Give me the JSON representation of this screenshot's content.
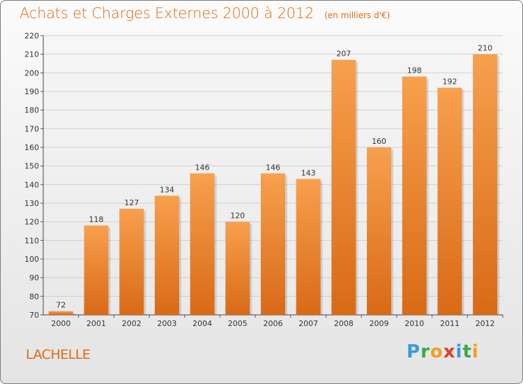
{
  "header": {
    "title": "Achats et Charges Externes 2000 à 2012",
    "subtitle": "(en milliers d'€)"
  },
  "commune": "LACHELLE",
  "brand": {
    "letters": [
      {
        "ch": "P",
        "color": "#3a9ad9"
      },
      {
        "ch": "r",
        "color": "#3aa84a"
      },
      {
        "ch": "o",
        "color": "#f0a020"
      },
      {
        "ch": "x",
        "color": "#e2402a"
      },
      {
        "ch": "i",
        "color": "#3a9ad9"
      },
      {
        "ch": "t",
        "color": "#3aa84a"
      },
      {
        "ch": "i",
        "color": "#f0a020"
      }
    ]
  },
  "chart_data": {
    "type": "bar",
    "categories": [
      "2000",
      "2001",
      "2002",
      "2003",
      "2004",
      "2005",
      "2006",
      "2007",
      "2008",
      "2009",
      "2010",
      "2011",
      "2012"
    ],
    "values": [
      72,
      118,
      127,
      134,
      146,
      120,
      146,
      143,
      207,
      160,
      198,
      192,
      210
    ],
    "ylim": [
      70,
      220
    ],
    "yticks": [
      70,
      80,
      90,
      100,
      110,
      120,
      130,
      140,
      150,
      160,
      170,
      180,
      190,
      200,
      210,
      220
    ],
    "grid": true,
    "bar_color_light": "#f7a04e",
    "bar_color_dark": "#d96a16",
    "title": "Achats et Charges Externes 2000 à 2012",
    "xlabel": "",
    "ylabel": ""
  }
}
